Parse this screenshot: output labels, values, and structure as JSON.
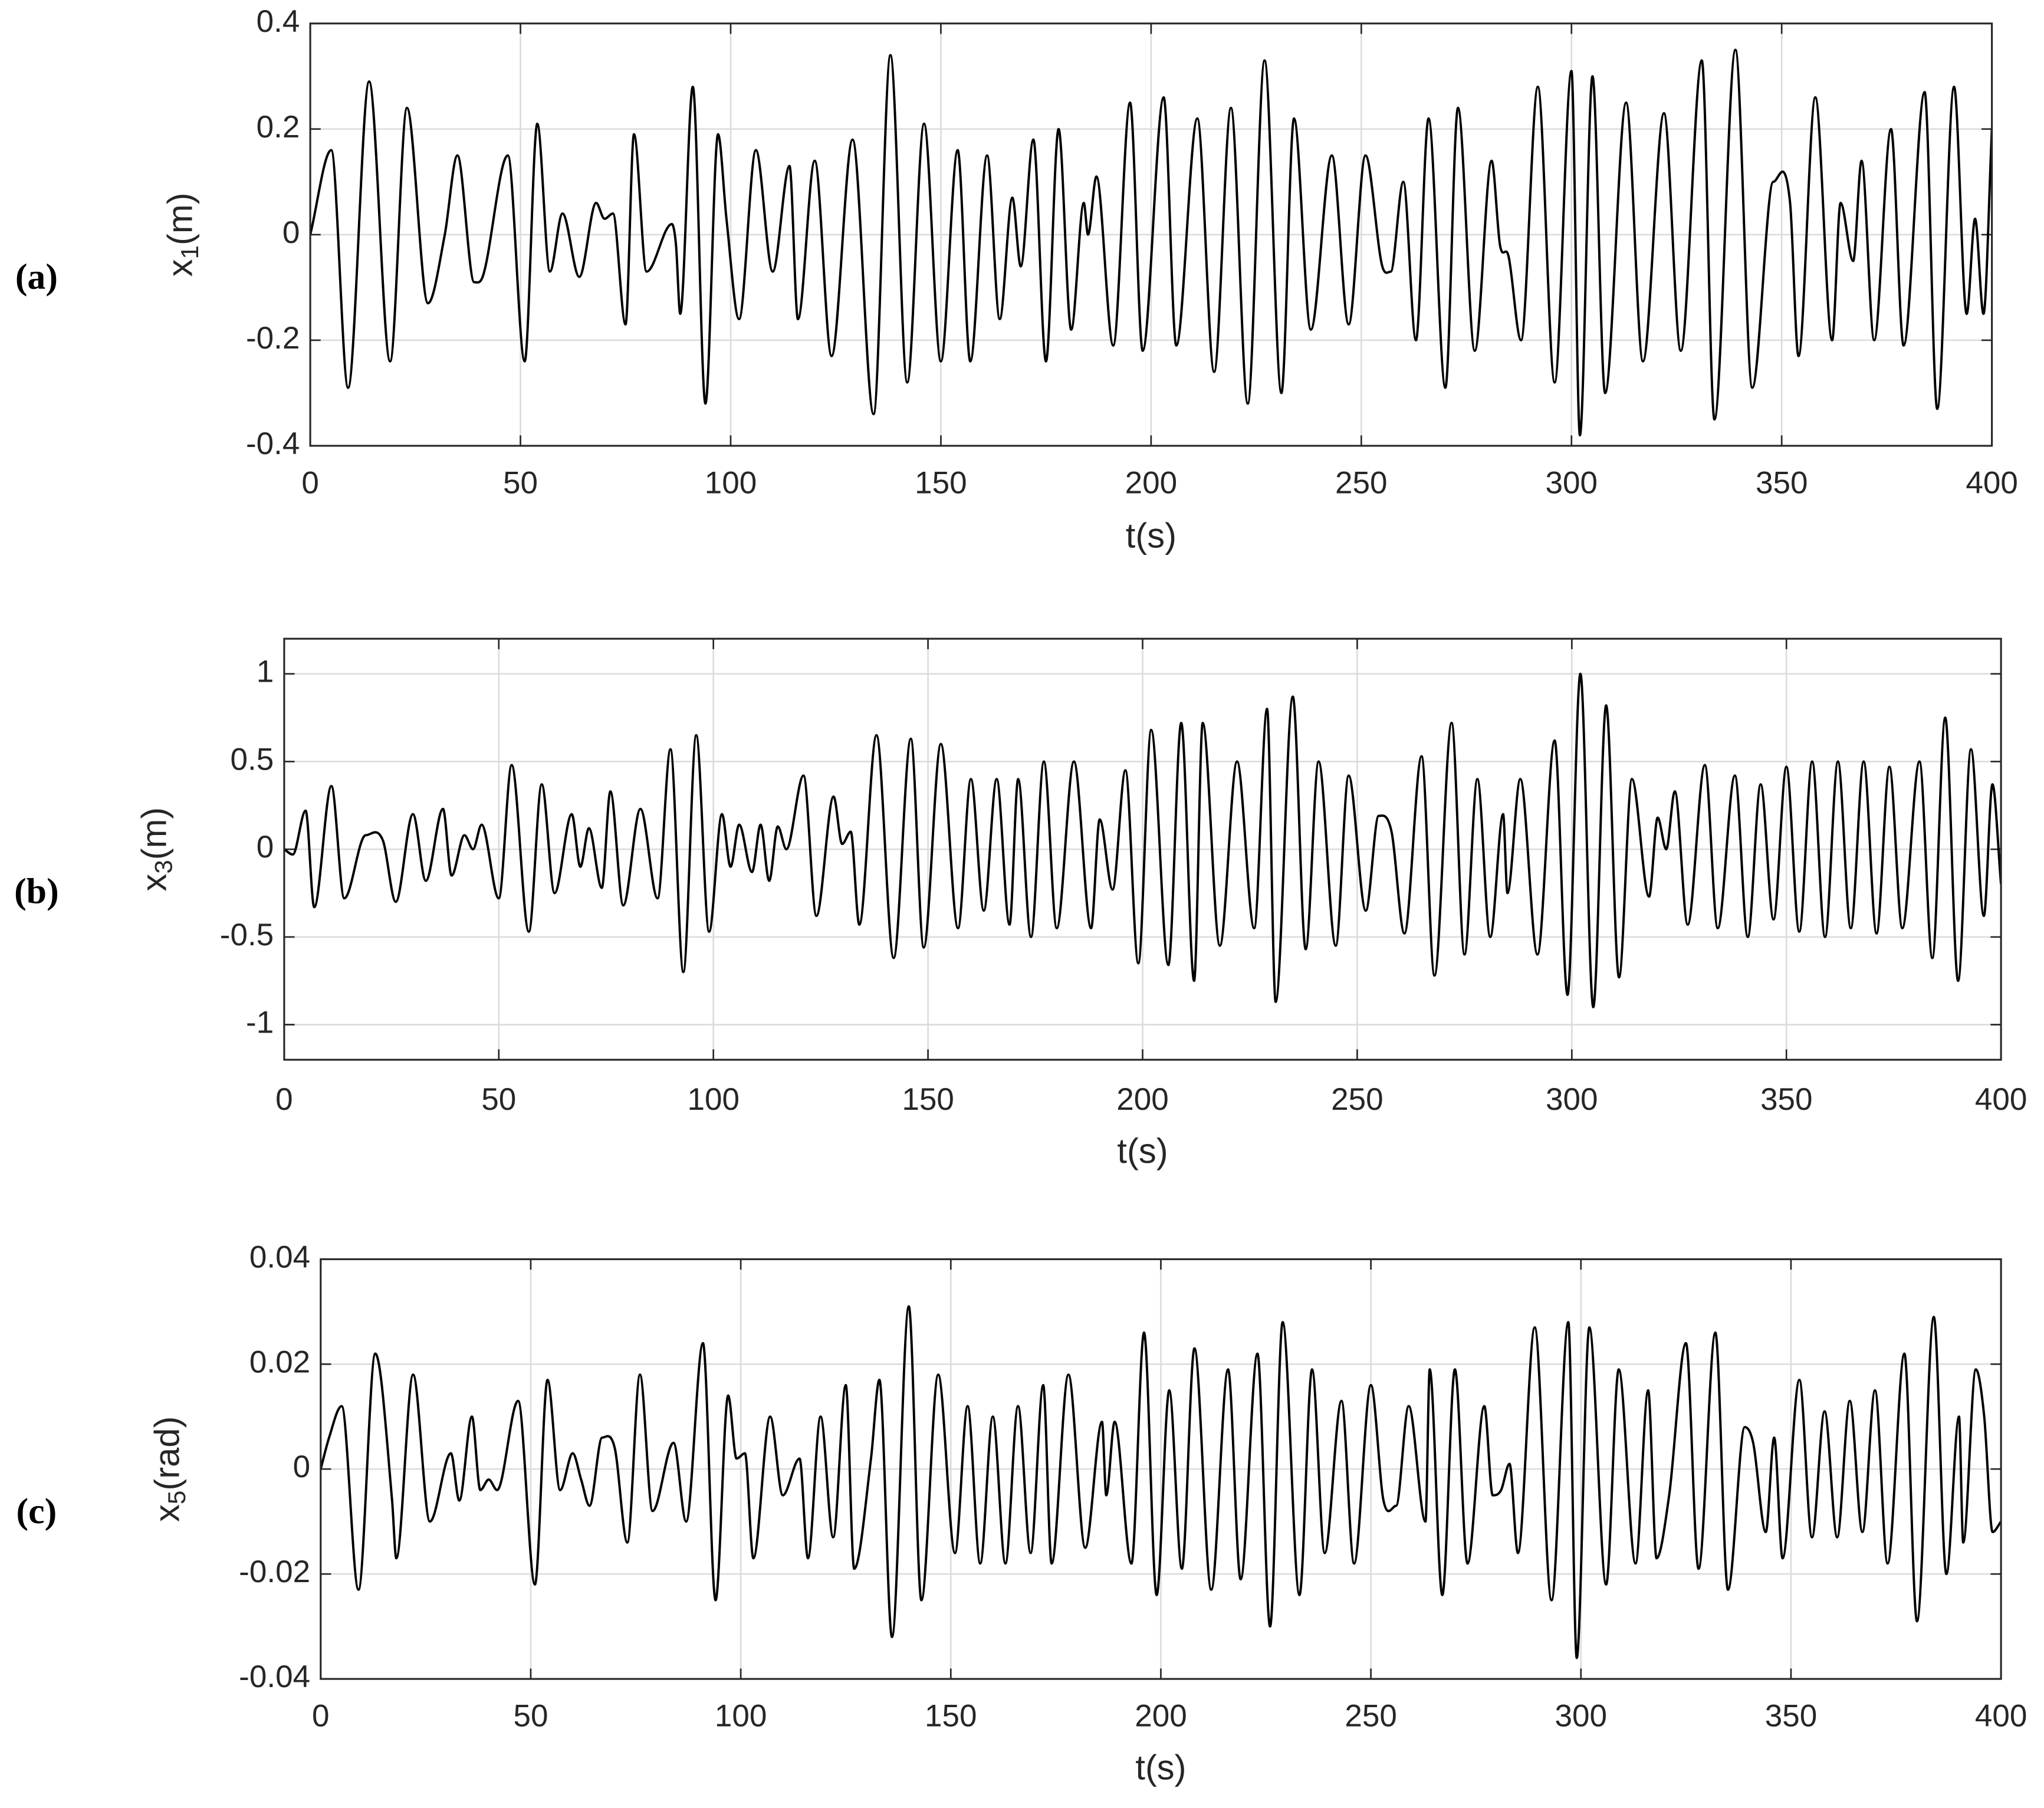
{
  "chart_data": [
    {
      "type": "line",
      "panel_label": "(a)",
      "ylabel_parts": [
        "x",
        "1",
        "(m)"
      ],
      "xlabel": "t(s)",
      "color": "#000000",
      "grid": true,
      "xlim": [
        0,
        400
      ],
      "xticks": [
        0,
        50,
        100,
        150,
        200,
        250,
        300,
        350,
        400
      ],
      "ylim": [
        -0.4,
        0.4
      ],
      "yticks": [
        -0.4,
        -0.2,
        0,
        0.2,
        0.4
      ],
      "x": [
        0,
        5,
        9,
        14,
        19,
        23,
        28,
        32,
        35,
        39,
        41,
        47,
        51,
        54,
        57,
        60,
        64,
        68,
        70,
        72,
        75,
        77,
        80,
        86,
        87,
        88,
        91,
        94,
        97,
        99,
        102,
        106,
        110,
        114,
        116,
        120,
        124,
        129,
        134,
        138,
        142,
        146,
        150,
        154,
        157,
        161,
        164,
        167,
        169,
        172,
        175,
        178,
        181,
        184,
        185,
        187,
        191,
        195,
        198,
        203,
        206,
        211,
        215,
        219,
        223,
        227,
        231,
        234,
        238,
        243,
        247,
        251,
        255,
        257,
        260,
        263,
        266,
        270,
        273,
        277,
        281,
        283,
        285,
        288,
        292,
        296,
        300,
        302,
        305,
        308,
        313,
        317,
        322,
        326,
        331,
        334,
        339,
        343,
        348,
        352,
        354,
        358,
        362,
        364,
        367,
        369,
        372,
        376,
        379,
        384,
        387,
        391,
        394,
        396,
        398,
        400
      ],
      "values": [
        0,
        0.16,
        -0.29,
        0.29,
        -0.24,
        0.24,
        -0.13,
        0,
        0.15,
        -0.09,
        -0.08,
        0.15,
        -0.24,
        0.21,
        -0.07,
        0.04,
        -0.08,
        0.06,
        0.03,
        0.04,
        -0.17,
        0.19,
        -0.07,
        0.02,
        -0.02,
        -0.15,
        0.28,
        -0.32,
        0.19,
        0.03,
        -0.16,
        0.16,
        -0.07,
        0.13,
        -0.16,
        0.14,
        -0.23,
        0.18,
        -0.34,
        0.34,
        -0.28,
        0.21,
        -0.24,
        0.16,
        -0.24,
        0.15,
        -0.16,
        0.07,
        -0.06,
        0.18,
        -0.24,
        0.2,
        -0.18,
        0.06,
        0,
        0.11,
        -0.21,
        0.25,
        -0.22,
        0.26,
        -0.21,
        0.22,
        -0.26,
        0.24,
        -0.32,
        0.33,
        -0.3,
        0.22,
        -0.18,
        0.15,
        -0.17,
        0.15,
        -0.06,
        -0.07,
        0.1,
        -0.2,
        0.22,
        -0.29,
        0.24,
        -0.22,
        0.14,
        -0.02,
        -0.04,
        -0.2,
        0.28,
        -0.28,
        0.31,
        -0.38,
        0.3,
        -0.3,
        0.25,
        -0.24,
        0.23,
        -0.22,
        0.33,
        -0.35,
        0.35,
        -0.29,
        0.1,
        0.06,
        -0.23,
        0.26,
        -0.2,
        0.06,
        -0.05,
        0.14,
        -0.2,
        0.2,
        -0.21,
        0.27,
        -0.33,
        0.28,
        -0.15,
        0.03,
        -0.15,
        0.2
      ]
    },
    {
      "type": "line",
      "panel_label": "(b)",
      "ylabel_parts": [
        "x",
        "3",
        "(m)"
      ],
      "xlabel": "t(s)",
      "color": "#000000",
      "grid": true,
      "xlim": [
        0,
        400
      ],
      "xticks": [
        0,
        50,
        100,
        150,
        200,
        250,
        300,
        350,
        400
      ],
      "ylim": [
        -1.2,
        1.2
      ],
      "yticks": [
        -1,
        -0.5,
        0,
        0.5,
        1
      ],
      "x": [
        0,
        2,
        5,
        7,
        11,
        14,
        19,
        23,
        26,
        30,
        33,
        37,
        39,
        42,
        44,
        46,
        50,
        53,
        57,
        60,
        63,
        67,
        69,
        71,
        74,
        76,
        79,
        83,
        87,
        90,
        93,
        96,
        99,
        102,
        104,
        106,
        109,
        111,
        113,
        115,
        117,
        121,
        124,
        128,
        130,
        132,
        134,
        138,
        142,
        146,
        149,
        153,
        157,
        160,
        163,
        166,
        169,
        171,
        174,
        177,
        180,
        184,
        188,
        190,
        193,
        196,
        199,
        202,
        206,
        209,
        212,
        214,
        218,
        222,
        226,
        229,
        231,
        235,
        238,
        241,
        245,
        248,
        252,
        255,
        258,
        261,
        265,
        268,
        272,
        275,
        278,
        281,
        284,
        285,
        288,
        292,
        296,
        299,
        302,
        305,
        308,
        311,
        314,
        318,
        320,
        322,
        324,
        327,
        331,
        334,
        338,
        341,
        344,
        347,
        350,
        353,
        356,
        359,
        362,
        365,
        368,
        371,
        374,
        377,
        381,
        384,
        387,
        390,
        393,
        396,
        398,
        400
      ],
      "values": [
        0,
        -0.03,
        0.22,
        -0.33,
        0.36,
        -0.28,
        0.08,
        0.05,
        -0.3,
        0.2,
        -0.18,
        0.23,
        -0.15,
        0.08,
        0,
        0.14,
        -0.28,
        0.48,
        -0.47,
        0.37,
        -0.25,
        0.2,
        -0.1,
        0.12,
        -0.22,
        0.33,
        -0.32,
        0.23,
        -0.28,
        0.57,
        -0.7,
        0.65,
        -0.47,
        0.2,
        -0.1,
        0.14,
        -0.13,
        0.14,
        -0.18,
        0.13,
        0,
        0.42,
        -0.38,
        0.3,
        0.03,
        0.1,
        -0.43,
        0.65,
        -0.62,
        0.63,
        -0.56,
        0.6,
        -0.45,
        0.4,
        -0.35,
        0.4,
        -0.43,
        0.4,
        -0.5,
        0.5,
        -0.45,
        0.5,
        -0.45,
        0.17,
        -0.23,
        0.45,
        -0.65,
        0.68,
        -0.66,
        0.72,
        -0.75,
        0.72,
        -0.55,
        0.5,
        -0.45,
        0.8,
        -0.87,
        0.87,
        -0.57,
        0.5,
        -0.55,
        0.42,
        -0.35,
        0.19,
        0.1,
        -0.48,
        0.53,
        -0.72,
        0.72,
        -0.6,
        0.4,
        -0.5,
        0.2,
        -0.25,
        0.4,
        -0.6,
        0.62,
        -0.83,
        1.0,
        -0.9,
        0.82,
        -0.73,
        0.4,
        -0.27,
        0.18,
        0,
        0.33,
        -0.43,
        0.48,
        -0.45,
        0.42,
        -0.5,
        0.37,
        -0.4,
        0.47,
        -0.47,
        0.5,
        -0.5,
        0.5,
        -0.45,
        0.5,
        -0.48,
        0.47,
        -0.45,
        0.5,
        -0.62,
        0.75,
        -0.75,
        0.57,
        -0.38,
        0.37,
        -0.2
      ]
    },
    {
      "type": "line",
      "panel_label": "(c)",
      "ylabel_parts": [
        "x",
        "5",
        "(rad)"
      ],
      "xlabel": "t(s)",
      "color": "#000000",
      "grid": true,
      "xlim": [
        0,
        400
      ],
      "xticks": [
        0,
        50,
        100,
        150,
        200,
        250,
        300,
        350,
        400
      ],
      "ylim": [
        -0.04,
        0.04
      ],
      "yticks": [
        -0.04,
        -0.02,
        0,
        0.02,
        0.04
      ],
      "x": [
        0,
        2,
        5,
        9,
        13,
        17,
        18,
        22,
        26,
        31,
        33,
        36,
        38,
        40,
        42,
        47,
        51,
        54,
        57,
        60,
        62,
        64,
        67,
        70,
        73,
        76,
        79,
        84,
        87,
        91,
        94,
        97,
        99,
        101,
        103,
        107,
        110,
        114,
        116,
        119,
        122,
        125,
        127,
        131,
        133,
        136,
        140,
        143,
        147,
        151,
        154,
        157,
        160,
        163,
        166,
        169,
        172,
        174,
        178,
        182,
        186,
        187,
        189,
        193,
        196,
        199,
        202,
        205,
        208,
        212,
        216,
        219,
        223,
        226,
        229,
        233,
        236,
        239,
        243,
        246,
        250,
        253,
        256,
        259,
        263,
        264,
        267,
        270,
        273,
        277,
        279,
        281,
        283,
        285,
        289,
        293,
        297,
        299,
        302,
        306,
        309,
        313,
        316,
        318,
        321,
        325,
        328,
        332,
        335,
        339,
        341,
        344,
        346,
        348,
        352,
        355,
        358,
        361,
        364,
        367,
        370,
        373,
        377,
        380,
        384,
        387,
        390,
        391,
        394,
        396,
        398,
        400
      ],
      "values": [
        0,
        0.006,
        0.012,
        -0.023,
        0.022,
        -0.006,
        -0.017,
        0.018,
        -0.01,
        0.003,
        -0.006,
        0.01,
        -0.004,
        -0.002,
        -0.004,
        0.013,
        -0.022,
        0.017,
        -0.004,
        0.003,
        -0.002,
        -0.007,
        0.006,
        0.004,
        -0.014,
        0.018,
        -0.008,
        0.005,
        -0.01,
        0.024,
        -0.025,
        0.014,
        0.002,
        0.003,
        -0.017,
        0.01,
        -0.005,
        0.002,
        -0.017,
        0.01,
        -0.013,
        0.016,
        -0.019,
        0.002,
        0.017,
        -0.032,
        0.031,
        -0.025,
        0.018,
        -0.016,
        0.012,
        -0.018,
        0.01,
        -0.018,
        0.012,
        -0.016,
        0.016,
        -0.018,
        0.018,
        -0.015,
        0.009,
        -0.005,
        0.009,
        -0.018,
        0.026,
        -0.024,
        0.015,
        -0.019,
        0.023,
        -0.023,
        0.019,
        -0.021,
        0.022,
        -0.03,
        0.028,
        -0.024,
        0.019,
        -0.016,
        0.013,
        -0.018,
        0.016,
        -0.006,
        -0.007,
        0.012,
        -0.01,
        0.019,
        -0.024,
        0.019,
        -0.018,
        0.012,
        -0.005,
        -0.004,
        0.001,
        -0.016,
        0.027,
        -0.025,
        0.028,
        -0.036,
        0.027,
        -0.022,
        0.019,
        -0.018,
        0.015,
        -0.017,
        -0.005,
        0.024,
        -0.019,
        0.026,
        -0.023,
        0.008,
        0.005,
        -0.012,
        0.006,
        -0.017,
        0.017,
        -0.013,
        0.011,
        -0.013,
        0.013,
        -0.012,
        0.015,
        -0.018,
        0.022,
        -0.029,
        0.029,
        -0.02,
        0.01,
        -0.014,
        0.019,
        0.01,
        -0.012,
        -0.01
      ]
    }
  ]
}
